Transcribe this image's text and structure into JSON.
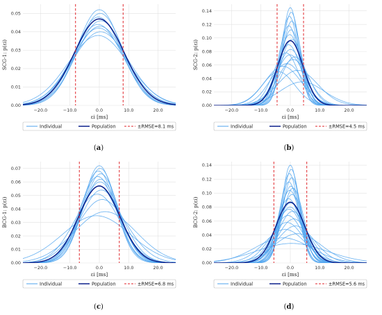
{
  "colors": {
    "individual": "#4da3ee",
    "population": "#0a1f8a",
    "rmse": "#e0262b",
    "grid": "#e2e2e2",
    "legend_border": "#bbbbbb"
  },
  "chart_data": [
    {
      "type": "line",
      "caption": "(a)",
      "ylabel": "SCG-1: p(εi)",
      "xlabel": "εi [ms]",
      "xlim": [
        -26,
        26
      ],
      "ylim": [
        0,
        0.055
      ],
      "xticks": [
        -20,
        -10,
        0,
        10,
        20
      ],
      "xtick_labels": [
        "−20.0",
        "−10.0",
        "0.0",
        "10.0",
        "20.0"
      ],
      "yticks": [
        0,
        0.01,
        0.02,
        0.03,
        0.04,
        0.05
      ],
      "ytick_labels": [
        "0.00",
        "0.01",
        "0.02",
        "0.03",
        "0.04",
        "0.05"
      ],
      "grid": true,
      "legend": [
        "Individual",
        "Population",
        "±RMSE=8.1 ms"
      ],
      "rmse": 8.1,
      "population": {
        "mean": 0,
        "sd": 8.5,
        "peak": 0.047
      },
      "individuals": [
        {
          "mean": 0,
          "sd": 7.6,
          "peak": 0.052
        },
        {
          "mean": 0.3,
          "sd": 7.8,
          "peak": 0.05
        },
        {
          "mean": -0.3,
          "sd": 8.0,
          "peak": 0.048
        },
        {
          "mean": 0.5,
          "sd": 8.3,
          "peak": 0.046
        },
        {
          "mean": -0.5,
          "sd": 8.6,
          "peak": 0.044
        },
        {
          "mean": 0.2,
          "sd": 8.9,
          "peak": 0.043
        },
        {
          "mean": -0.2,
          "sd": 9.2,
          "peak": 0.042
        },
        {
          "mean": 0.4,
          "sd": 9.6,
          "peak": 0.04
        },
        {
          "mean": -0.4,
          "sd": 10.2,
          "peak": 0.038
        }
      ]
    },
    {
      "type": "line",
      "caption": "(b)",
      "ylabel": "SCG-2: p(εi)",
      "xlabel": "εi [ms]",
      "xlim": [
        -26,
        26
      ],
      "ylim": [
        0,
        0.15
      ],
      "xticks": [
        -20,
        -10,
        0,
        10,
        20
      ],
      "xtick_labels": [
        "−20.0",
        "−10.0",
        "0.0",
        "10.0",
        "20.0"
      ],
      "yticks": [
        0,
        0.02,
        0.04,
        0.06,
        0.08,
        0.1,
        0.12,
        0.14
      ],
      "ytick_labels": [
        "0.00",
        "0.02",
        "0.04",
        "0.06",
        "0.08",
        "0.10",
        "0.12",
        "0.14"
      ],
      "grid": true,
      "legend": [
        "Individual",
        "Population",
        "±RMSE=4.5 ms"
      ],
      "rmse": 4.5,
      "population": {
        "mean": 0,
        "sd": 4.3,
        "peak": 0.096
      },
      "individuals": [
        {
          "mean": 0,
          "sd": 2.8,
          "peak": 0.145
        },
        {
          "mean": 0.3,
          "sd": 3.0,
          "peak": 0.138
        },
        {
          "mean": -0.3,
          "sd": 3.1,
          "peak": 0.132
        },
        {
          "mean": 0.5,
          "sd": 3.3,
          "peak": 0.125
        },
        {
          "mean": -0.5,
          "sd": 3.5,
          "peak": 0.118
        },
        {
          "mean": 0.2,
          "sd": 3.6,
          "peak": 0.112
        },
        {
          "mean": -0.2,
          "sd": 3.8,
          "peak": 0.105
        },
        {
          "mean": 0.6,
          "sd": 4.0,
          "peak": 0.098
        },
        {
          "mean": -0.6,
          "sd": 4.2,
          "peak": 0.09
        },
        {
          "mean": 0.1,
          "sd": 4.5,
          "peak": 0.083
        },
        {
          "mean": -0.1,
          "sd": 4.8,
          "peak": 0.075
        },
        {
          "mean": 1.0,
          "sd": 5.2,
          "peak": 0.068
        },
        {
          "mean": -1.2,
          "sd": 5.6,
          "peak": 0.062
        },
        {
          "mean": -2.5,
          "sd": 6.2,
          "peak": 0.058
        },
        {
          "mean": 2.5,
          "sd": 6.8,
          "peak": 0.052
        },
        {
          "mean": -4.0,
          "sd": 5.5,
          "peak": 0.05
        },
        {
          "mean": 4.0,
          "sd": 7.5,
          "peak": 0.035
        },
        {
          "mean": 1.5,
          "sd": 4.6,
          "peak": 0.072
        },
        {
          "mean": -1.5,
          "sd": 4.4,
          "peak": 0.078
        }
      ]
    },
    {
      "type": "line",
      "caption": "(c)",
      "ylabel": "BCG-1: p(εi)",
      "xlabel": "εi [ms]",
      "xlim": [
        -26,
        26
      ],
      "ylim": [
        0,
        0.075
      ],
      "xticks": [
        -20,
        -10,
        0,
        10,
        20
      ],
      "xtick_labels": [
        "−20.0",
        "−10.0",
        "0.0",
        "10.0",
        "20.0"
      ],
      "yticks": [
        0,
        0.01,
        0.02,
        0.03,
        0.04,
        0.05,
        0.06,
        0.07
      ],
      "ytick_labels": [
        "0.00",
        "0.01",
        "0.02",
        "0.03",
        "0.04",
        "0.05",
        "0.06",
        "0.07"
      ],
      "grid": true,
      "legend": [
        "Individual",
        "Population",
        "±RMSE=6.8 ms"
      ],
      "rmse": 6.8,
      "population": {
        "mean": 0,
        "sd": 7.0,
        "peak": 0.057
      },
      "individuals": [
        {
          "mean": 0,
          "sd": 5.5,
          "peak": 0.072
        },
        {
          "mean": 0.3,
          "sd": 5.7,
          "peak": 0.07
        },
        {
          "mean": -0.3,
          "sd": 5.9,
          "peak": 0.068
        },
        {
          "mean": 0.5,
          "sd": 6.1,
          "peak": 0.066
        },
        {
          "mean": -0.5,
          "sd": 6.3,
          "peak": 0.064
        },
        {
          "mean": 0.2,
          "sd": 6.6,
          "peak": 0.06
        },
        {
          "mean": -0.2,
          "sd": 6.9,
          "peak": 0.057
        },
        {
          "mean": 0.7,
          "sd": 7.3,
          "peak": 0.054
        },
        {
          "mean": -0.7,
          "sd": 7.8,
          "peak": 0.051
        },
        {
          "mean": 1.0,
          "sd": 8.4,
          "peak": 0.047
        },
        {
          "mean": 2.0,
          "sd": 10.5,
          "peak": 0.038
        },
        {
          "mean": -1.0,
          "sd": 11.5,
          "peak": 0.035
        },
        {
          "mean": 0.4,
          "sd": 6.4,
          "peak": 0.062
        }
      ]
    },
    {
      "type": "line",
      "caption": "(d)",
      "ylabel": "BCG-2: p(εi)",
      "xlabel": "εi [ms]",
      "xlim": [
        -26,
        26
      ],
      "ylim": [
        0,
        0.145
      ],
      "xticks": [
        -20,
        -10,
        0,
        10,
        20
      ],
      "xtick_labels": [
        "−20.0",
        "−10.0",
        "0.0",
        "10.0",
        "20.0"
      ],
      "yticks": [
        0,
        0.02,
        0.04,
        0.06,
        0.08,
        0.1,
        0.12,
        0.14
      ],
      "ytick_labels": [
        "0.00",
        "0.02",
        "0.04",
        "0.06",
        "0.08",
        "0.10",
        "0.12",
        "0.14"
      ],
      "grid": true,
      "legend": [
        "Individual",
        "Population",
        "±RMSE=5.6 ms"
      ],
      "rmse": 5.6,
      "population": {
        "mean": 0,
        "sd": 4.9,
        "peak": 0.087
      },
      "individuals": [
        {
          "mean": 0,
          "sd": 2.9,
          "peak": 0.14
        },
        {
          "mean": 0.3,
          "sd": 3.0,
          "peak": 0.134
        },
        {
          "mean": -0.3,
          "sd": 3.1,
          "peak": 0.128
        },
        {
          "mean": 0.5,
          "sd": 3.3,
          "peak": 0.122
        },
        {
          "mean": -0.5,
          "sd": 3.4,
          "peak": 0.116
        },
        {
          "mean": 0.2,
          "sd": 3.6,
          "peak": 0.11
        },
        {
          "mean": -0.2,
          "sd": 3.8,
          "peak": 0.104
        },
        {
          "mean": 0.6,
          "sd": 4.0,
          "peak": 0.098
        },
        {
          "mean": -0.6,
          "sd": 4.2,
          "peak": 0.092
        },
        {
          "mean": 0.1,
          "sd": 4.4,
          "peak": 0.086
        },
        {
          "mean": -0.1,
          "sd": 4.6,
          "peak": 0.08
        },
        {
          "mean": 0.8,
          "sd": 4.9,
          "peak": 0.074
        },
        {
          "mean": -0.8,
          "sd": 5.2,
          "peak": 0.068
        },
        {
          "mean": 1.2,
          "sd": 5.5,
          "peak": 0.063
        },
        {
          "mean": -1.2,
          "sd": 5.9,
          "peak": 0.058
        },
        {
          "mean": 1.8,
          "sd": 6.4,
          "peak": 0.053
        },
        {
          "mean": -1.8,
          "sd": 7.0,
          "peak": 0.048
        },
        {
          "mean": 2.5,
          "sd": 8.0,
          "peak": 0.042
        },
        {
          "mean": -2.5,
          "sd": 9.5,
          "peak": 0.036
        },
        {
          "mean": 0.4,
          "sd": 12.0,
          "peak": 0.028
        },
        {
          "mean": -0.4,
          "sd": 4.8,
          "peak": 0.077
        },
        {
          "mean": 0.9,
          "sd": 3.7,
          "peak": 0.107
        }
      ]
    }
  ]
}
